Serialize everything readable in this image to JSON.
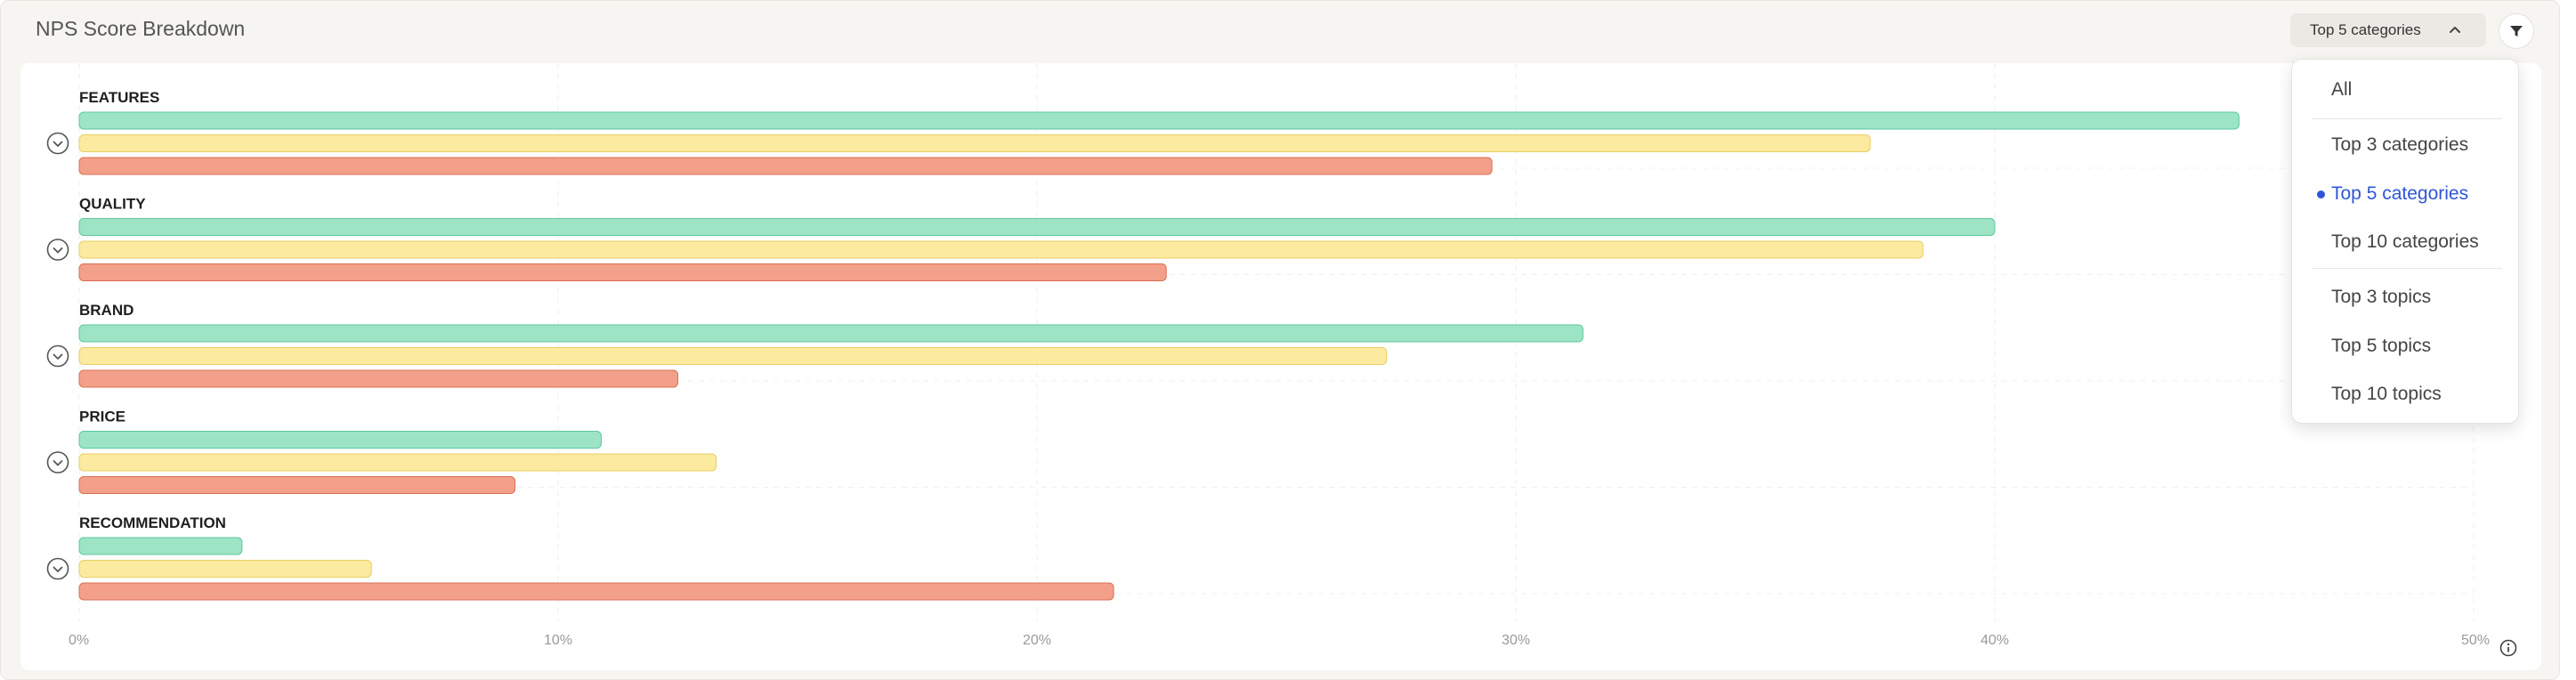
{
  "panel": {
    "title": "NPS Score Breakdown"
  },
  "range_select": {
    "value": "Top 5 categories",
    "icon": "chevron-up-icon"
  },
  "filter": {
    "icon": "filter-icon"
  },
  "dropdown": {
    "groups": [
      [
        "All"
      ],
      [
        "Top 3 categories",
        "Top 5 categories",
        "Top 10 categories"
      ],
      [
        "Top 3 topics",
        "Top 5 topics",
        "Top 10 topics"
      ]
    ],
    "selected": "Top 5 categories"
  },
  "colors": {
    "promoters": "#9de4c6",
    "promoters_border": "#5fc79d",
    "passives": "#fbeaa0",
    "passives_border": "#e8cf63",
    "detractors": "#f3a08a",
    "detractors_border": "#d96f55",
    "selected_item": "#2f55d4"
  },
  "chart_data": {
    "type": "bar",
    "orientation": "horizontal",
    "categories": [
      "FEATURES",
      "QUALITY",
      "BRAND",
      "PRICE",
      "RECOMMENDATION"
    ],
    "series": [
      {
        "values": [
          45.1,
          40.0,
          31.4,
          10.9,
          3.4
        ]
      },
      {
        "values": [
          37.4,
          38.5,
          27.3,
          13.3,
          6.1
        ]
      },
      {
        "values": [
          29.5,
          22.7,
          12.5,
          9.1,
          21.6
        ]
      }
    ],
    "xlim": [
      0,
      50
    ],
    "xticks": [
      "0%",
      "10%",
      "20%",
      "30%",
      "40%",
      "50%"
    ],
    "grid": true,
    "row_icon": "chevron-down-circle-icon",
    "info_icon": "info-icon"
  }
}
